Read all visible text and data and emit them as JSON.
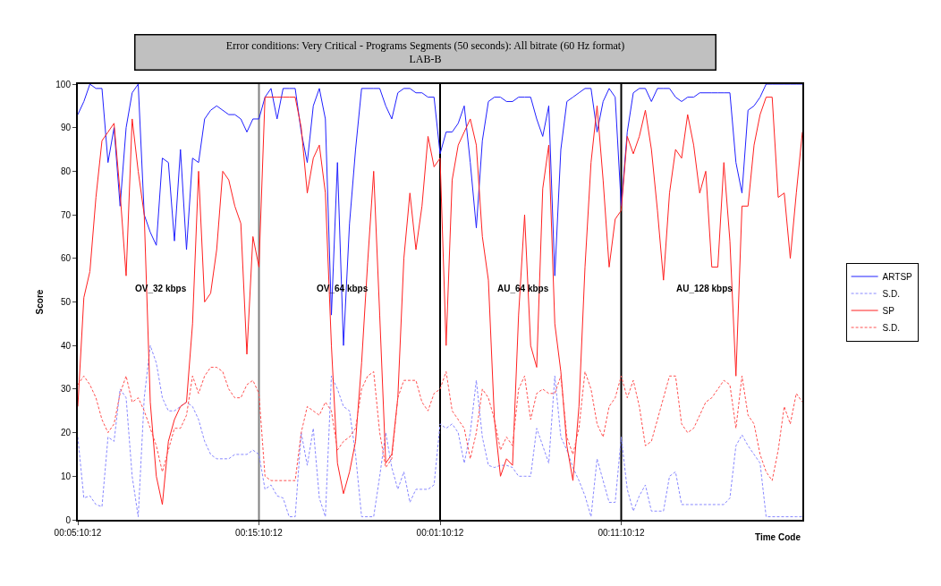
{
  "chart_data": {
    "type": "line",
    "title": "Error conditions: Very Critical - Programs Segments (50 seconds): All bitrate (60 Hz format)\nLAB-B",
    "xlabel": "Time Code",
    "ylabel": "Score",
    "categories": [
      "00:05:10:12",
      null,
      null,
      null,
      null,
      null,
      null,
      null,
      null,
      null,
      null,
      null,
      null,
      null,
      null,
      null,
      null,
      null,
      null,
      null,
      null,
      null,
      null,
      null,
      null,
      null,
      null,
      null,
      null,
      null,
      "00:15:10:12",
      null,
      null,
      null,
      null,
      null,
      null,
      null,
      null,
      null,
      null,
      null,
      null,
      null,
      null,
      null,
      null,
      null,
      null,
      null,
      null,
      null,
      null,
      null,
      null,
      null,
      null,
      null,
      null,
      null,
      "00:01:10:12",
      null,
      null,
      null,
      null,
      null,
      null,
      null,
      null,
      null,
      null,
      null,
      null,
      null,
      null,
      null,
      null,
      null,
      null,
      null,
      null,
      null,
      null,
      null,
      null,
      null,
      null,
      null,
      null,
      null,
      "00:11:10:12",
      null,
      null,
      null,
      null,
      null,
      null,
      null,
      null,
      null,
      null,
      null,
      null,
      null,
      null,
      null,
      null,
      null,
      null,
      null,
      null,
      null,
      null,
      null,
      null,
      null,
      null,
      null,
      null,
      null,
      null
    ],
    "ylim": [
      0,
      100
    ],
    "yticks": [
      0,
      10,
      20,
      30,
      40,
      50,
      60,
      70,
      80,
      90,
      100
    ],
    "grid": false,
    "legend": "right",
    "ref_lines": [
      {
        "axis": "x",
        "value": "00:15:10:12",
        "color": "#808080"
      },
      {
        "axis": "x",
        "value": "00:01:10:12",
        "color": "#000000"
      },
      {
        "axis": "x",
        "value": "00:11:10:12",
        "color": "#000000"
      }
    ],
    "annotations": [
      "OV_32 kbps",
      "OV_64 kbps",
      "AU_64 kbps",
      "AU_128 kbps"
    ],
    "series": [
      {
        "name": "ARTSP",
        "color": "#2020ff",
        "line_style": "solid",
        "values": [
          93,
          96,
          100,
          99,
          99,
          82,
          90,
          72,
          90,
          98,
          100,
          70,
          66,
          63,
          83,
          82,
          64,
          85,
          62,
          83,
          82,
          92,
          94,
          95,
          94,
          93,
          93,
          92,
          89,
          92,
          92,
          97,
          99,
          92,
          99,
          99,
          99,
          89,
          82,
          95,
          99,
          92,
          47,
          82,
          40,
          68,
          85,
          99,
          99,
          99,
          99,
          95,
          92,
          98,
          99,
          99,
          98,
          98,
          97,
          97,
          84,
          89,
          89,
          91,
          95,
          82,
          67,
          87,
          96,
          97,
          97,
          96,
          96,
          97,
          97,
          97,
          92,
          88,
          95,
          56,
          85,
          96,
          97,
          98,
          99,
          99,
          89,
          96,
          99,
          97,
          72,
          89,
          98,
          99,
          99,
          96,
          99,
          99,
          99,
          97,
          96,
          97,
          97,
          98,
          98,
          98,
          98,
          98,
          98,
          82,
          75,
          94,
          95,
          97,
          100,
          100,
          100,
          100,
          100,
          100,
          100
        ]
      },
      {
        "name": "S.D.",
        "color": "#8888ff",
        "line_style": "dashed",
        "values": [
          19,
          5,
          5.5,
          3.5,
          3,
          19,
          18,
          30,
          28,
          10,
          0.7,
          28,
          40,
          36,
          28,
          25,
          25,
          26,
          27,
          26,
          23,
          18,
          15,
          14,
          14,
          14,
          15,
          15,
          15,
          16,
          15,
          7,
          8,
          5.5,
          5,
          0.7,
          0.7,
          20,
          12.5,
          21,
          5,
          0.7,
          33,
          30,
          26,
          25,
          15,
          0.7,
          0.7,
          0.7,
          10,
          20,
          12,
          7,
          11,
          4,
          7,
          7,
          7,
          8,
          22,
          21,
          22,
          20,
          13,
          20,
          32,
          19,
          12.5,
          12,
          12.5,
          12.5,
          12,
          10,
          10,
          10,
          21,
          17,
          13,
          33,
          19,
          16,
          12,
          9,
          5.5,
          0.7,
          14,
          9,
          4,
          4,
          19,
          7,
          2,
          5.5,
          8,
          2,
          2,
          2,
          10,
          11,
          3.5,
          3.5,
          3.5,
          3.5,
          3.5,
          3.5,
          3.5,
          3.5,
          5,
          17,
          19.5,
          17,
          15,
          13,
          0.7,
          0.7,
          0.7,
          0.7,
          0.7,
          0.7,
          0.7
        ]
      },
      {
        "name": "SP",
        "color": "#ff2020",
        "line_style": "solid",
        "values": [
          26,
          51,
          57,
          74,
          87,
          89,
          91,
          75,
          56,
          92,
          80,
          70,
          27,
          10,
          3.5,
          18,
          23,
          26,
          27,
          45,
          80,
          50,
          52,
          62,
          80,
          78,
          72,
          68,
          38,
          65,
          58,
          97,
          97,
          97,
          97,
          97,
          97,
          90,
          75,
          83,
          86,
          75,
          40,
          13,
          6,
          11,
          18,
          36,
          59,
          80,
          47,
          13,
          15,
          28,
          60,
          75,
          62,
          72,
          88,
          81,
          83,
          40,
          78,
          86,
          89,
          92,
          86,
          65,
          55,
          23,
          10,
          14,
          12.5,
          47,
          70,
          40,
          35,
          76,
          86,
          45,
          34,
          17,
          9,
          26,
          58,
          82,
          95,
          78,
          58,
          69,
          71,
          88,
          84,
          88,
          94,
          85,
          71,
          55,
          75,
          85,
          83,
          93,
          86,
          75,
          80,
          58,
          58,
          82,
          64,
          33,
          72,
          72,
          86,
          93,
          97,
          97,
          74,
          75,
          60,
          75,
          89
        ]
      },
      {
        "name": "S.D.",
        "color": "#ff5050",
        "line_style": "dashed",
        "values": [
          31,
          33,
          31,
          28,
          23,
          20,
          22,
          29,
          33,
          27,
          28,
          25,
          21,
          17,
          11,
          16,
          21,
          21,
          24,
          33,
          29,
          33,
          35,
          35,
          34,
          30,
          28,
          28,
          31,
          32,
          29,
          10,
          9,
          9,
          9,
          9,
          9,
          20,
          26,
          25,
          24,
          27,
          25,
          16,
          18,
          19,
          21,
          30,
          33,
          34,
          20,
          12,
          14,
          28,
          32,
          32,
          32,
          27,
          25,
          29,
          30,
          34,
          25,
          23,
          21,
          14,
          20,
          30,
          28,
          23,
          16,
          19,
          17,
          30,
          33,
          23,
          29,
          30,
          29,
          29,
          33,
          19,
          15,
          21,
          34,
          30,
          22,
          19,
          26,
          28,
          33,
          28,
          32,
          26,
          17,
          18,
          23,
          28,
          33,
          33,
          22,
          20,
          21,
          24,
          27,
          28,
          30,
          32,
          31,
          21,
          33,
          24,
          22,
          15,
          11,
          9,
          16,
          26,
          22,
          29,
          27
        ]
      }
    ]
  }
}
